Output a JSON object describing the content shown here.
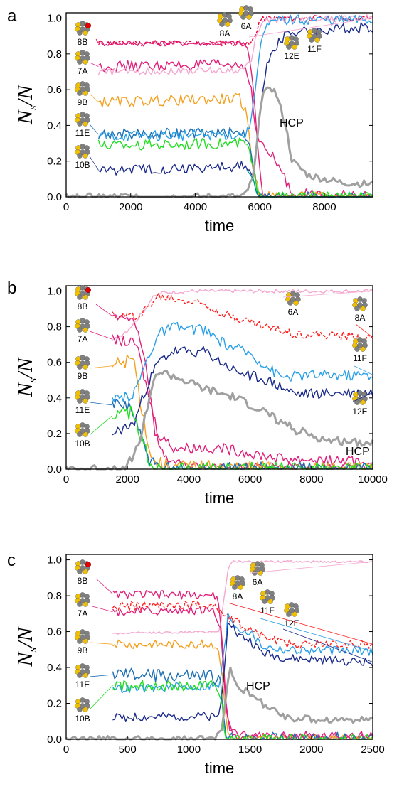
{
  "colors": {
    "8B": "#e8003a",
    "7A": "#e0207a",
    "9B": "#f5a020",
    "11E": "#1c6fb5",
    "10B": "#1a2a8c",
    "8A": "#ff2020",
    "6A": "#f4a8d0",
    "11F": "#2aa0e8",
    "12E": "#1a2a8c",
    "HCP": "#a0a0a0",
    "green": "#20dd20"
  },
  "chart_data": [
    {
      "type": "line",
      "panel": "a",
      "xlabel": "time",
      "ylabel": "N",
      "ylabel_sub": "s",
      "ylabel_tail": "/N",
      "xlim": [
        0,
        9500
      ],
      "ylim": [
        0,
        1.03
      ],
      "xticks": [
        "0",
        "2000",
        "4000",
        "6000",
        "8000"
      ],
      "xtick_values": [
        0,
        2000,
        4000,
        6000,
        8000
      ],
      "yticks": [
        "0.0",
        "0.2",
        "0.4",
        "0.6",
        "0.8",
        "1.0"
      ],
      "ytick_values": [
        0,
        0.2,
        0.4,
        0.6,
        0.8,
        1.0
      ],
      "cluster_labels": [
        "8B",
        "7A",
        "9B",
        "11E",
        "10B",
        "8A",
        "6A",
        "12E",
        "11F"
      ],
      "hcp_label": "HCP",
      "series": [
        {
          "name": "8B",
          "color": "#e8003a",
          "dashed": true,
          "noise": 0.008,
          "x": [
            1000,
            5500,
            5700,
            5850,
            6000,
            6300,
            9500
          ],
          "y": [
            0.86,
            0.86,
            0.85,
            0.9,
            0.99,
            1.0,
            1.0
          ]
        },
        {
          "name": "8B-solid",
          "color": "#e0207a",
          "noise": 0.008,
          "x": [
            1000,
            5500,
            5650,
            5800,
            5950,
            6100,
            9500
          ],
          "y": [
            0.86,
            0.86,
            0.82,
            0.6,
            0.25,
            0.0,
            0.0
          ]
        },
        {
          "name": "7A",
          "color": "#e0207a",
          "noise": 0.015,
          "x": [
            1000,
            5500,
            5700,
            5850,
            6000,
            6500,
            7000,
            9500
          ],
          "y": [
            0.73,
            0.74,
            0.65,
            0.4,
            0.3,
            0.2,
            0.02,
            0.0
          ]
        },
        {
          "name": "6A",
          "color": "#f4a8d0",
          "noise": 0.01,
          "x": [
            1000,
            5500,
            5700,
            5900,
            6100,
            9500
          ],
          "y": [
            0.7,
            0.71,
            0.75,
            0.9,
            0.99,
            1.0
          ]
        },
        {
          "name": "9B",
          "color": "#f5a020",
          "noise": 0.015,
          "x": [
            1000,
            5400,
            5600,
            5800,
            6000,
            9500
          ],
          "y": [
            0.53,
            0.55,
            0.45,
            0.15,
            0.0,
            0.0
          ]
        },
        {
          "name": "11E",
          "color": "#1c6fb5",
          "noise": 0.015,
          "x": [
            1000,
            5500,
            5700,
            5900,
            6000,
            9500
          ],
          "y": [
            0.35,
            0.36,
            0.3,
            0.05,
            0.0,
            0.0
          ]
        },
        {
          "name": "11E-b",
          "color": "#2aa0e8",
          "noise": 0.015,
          "x": [
            1000,
            5600,
            5800,
            6000,
            6200,
            6600,
            9500
          ],
          "y": [
            0.34,
            0.35,
            0.5,
            0.85,
            0.95,
            0.99,
            0.99
          ]
        },
        {
          "name": "green",
          "color": "#20dd20",
          "noise": 0.015,
          "x": [
            1000,
            5600,
            5800,
            5950,
            9500
          ],
          "y": [
            0.29,
            0.3,
            0.15,
            0.0,
            0.0
          ]
        },
        {
          "name": "10B",
          "color": "#1a2a8c",
          "noise": 0.015,
          "x": [
            1000,
            5600,
            5800,
            6000,
            6200,
            6800,
            9500
          ],
          "y": [
            0.15,
            0.17,
            0.1,
            0.45,
            0.75,
            0.92,
            0.95
          ]
        },
        {
          "name": "HCP",
          "color": "#a0a0a0",
          "width": 3,
          "noise": 0.01,
          "x": [
            0,
            5500,
            5800,
            6000,
            6200,
            6500,
            6800,
            7000,
            7500,
            8000,
            8500,
            9500
          ],
          "y": [
            0.0,
            0.0,
            0.1,
            0.5,
            0.64,
            0.58,
            0.4,
            0.2,
            0.12,
            0.1,
            0.08,
            0.07
          ]
        },
        {
          "name": "teal",
          "color": "#009090",
          "noise": 0.0,
          "x": [
            5600,
            5800,
            5900,
            6000,
            9500
          ],
          "y": [
            0.15,
            0.1,
            0.02,
            0.0,
            0.0
          ]
        }
      ]
    },
    {
      "type": "line",
      "panel": "b",
      "xlabel": "time",
      "ylabel": "N",
      "ylabel_sub": "s",
      "ylabel_tail": "/N",
      "xlim": [
        0,
        10000
      ],
      "ylim": [
        0,
        1.03
      ],
      "xticks": [
        "0",
        "2000",
        "4000",
        "6000",
        "8000",
        "10000"
      ],
      "xtick_values": [
        0,
        2000,
        4000,
        6000,
        8000,
        10000
      ],
      "yticks": [
        "0.0",
        "0.2",
        "0.4",
        "0.6",
        "0.8",
        "1.0"
      ],
      "ytick_values": [
        0,
        0.2,
        0.4,
        0.6,
        0.8,
        1.0
      ],
      "cluster_labels": [
        "8B",
        "7A",
        "9B",
        "11E",
        "10B",
        "6A",
        "8A",
        "11F",
        "12E"
      ],
      "hcp_label": "HCP",
      "series": [
        {
          "name": "6A",
          "color": "#f4a8d0",
          "noise": 0.005,
          "x": [
            1500,
            2000,
            2500,
            2800,
            3100,
            4000,
            10000
          ],
          "y": [
            0.72,
            0.78,
            0.88,
            0.96,
            0.99,
            1.0,
            1.0
          ]
        },
        {
          "name": "8A",
          "color": "#ff2020",
          "dashed": true,
          "noise": 0.012,
          "x": [
            1500,
            2300,
            2600,
            3000,
            4500,
            5200,
            6500,
            7500,
            10000
          ],
          "y": [
            0.86,
            0.86,
            0.9,
            0.97,
            0.93,
            0.87,
            0.8,
            0.76,
            0.74
          ]
        },
        {
          "name": "8B",
          "color": "#e0207a",
          "noise": 0.01,
          "x": [
            1500,
            2200,
            2600,
            2900,
            3300,
            4000,
            10000
          ],
          "y": [
            0.86,
            0.85,
            0.6,
            0.2,
            0.05,
            0.02,
            0.01
          ]
        },
        {
          "name": "7A",
          "color": "#e0207a",
          "noise": 0.015,
          "x": [
            1500,
            2300,
            2700,
            3000,
            3500,
            5000,
            7000,
            10000
          ],
          "y": [
            0.73,
            0.7,
            0.4,
            0.2,
            0.12,
            0.12,
            0.06,
            0.04
          ]
        },
        {
          "name": "9B",
          "color": "#f5a020",
          "noise": 0.02,
          "x": [
            1500,
            2200,
            2500,
            2800,
            3200,
            4000,
            10000
          ],
          "y": [
            0.58,
            0.62,
            0.3,
            0.05,
            0.02,
            0.01,
            0.0
          ]
        },
        {
          "name": "11F",
          "color": "#2aa0e8",
          "noise": 0.015,
          "x": [
            1500,
            2200,
            2600,
            3000,
            3500,
            4500,
            5200,
            6000,
            7000,
            8000,
            10000
          ],
          "y": [
            0.38,
            0.42,
            0.6,
            0.76,
            0.8,
            0.78,
            0.7,
            0.65,
            0.52,
            0.53,
            0.53
          ]
        },
        {
          "name": "12E",
          "color": "#1a2a8c",
          "noise": 0.015,
          "x": [
            1500,
            2200,
            2600,
            3000,
            3500,
            4500,
            5500,
            6500,
            7500,
            10000
          ],
          "y": [
            0.2,
            0.25,
            0.45,
            0.6,
            0.66,
            0.66,
            0.55,
            0.5,
            0.42,
            0.43
          ]
        },
        {
          "name": "11E",
          "color": "#1c6fb5",
          "noise": 0.02,
          "x": [
            1500,
            2100,
            2400,
            2700,
            3000,
            10000
          ],
          "y": [
            0.36,
            0.36,
            0.2,
            0.05,
            0.0,
            0.0
          ]
        },
        {
          "name": "10B",
          "color": "#20dd20",
          "noise": 0.02,
          "x": [
            1500,
            2100,
            2400,
            2700,
            2900,
            10000
          ],
          "y": [
            0.3,
            0.32,
            0.2,
            0.05,
            0.0,
            0.0
          ]
        },
        {
          "name": "HCP",
          "color": "#a0a0a0",
          "width": 3,
          "noise": 0.012,
          "x": [
            0,
            1500,
            2000,
            2400,
            2700,
            3000,
            3500,
            4500,
            5500,
            6500,
            7500,
            8500,
            10000
          ],
          "y": [
            0.0,
            0.0,
            0.02,
            0.15,
            0.4,
            0.55,
            0.52,
            0.45,
            0.4,
            0.32,
            0.22,
            0.16,
            0.15
          ]
        }
      ]
    },
    {
      "type": "line",
      "panel": "c",
      "xlabel": "time",
      "ylabel": "N",
      "ylabel_sub": "s",
      "ylabel_tail": "/N",
      "xlim": [
        0,
        2500
      ],
      "ylim": [
        0,
        1.03
      ],
      "xticks": [
        "0",
        "500",
        "1000",
        "1500",
        "2000",
        "2500"
      ],
      "xtick_values": [
        0,
        500,
        1000,
        1500,
        2000,
        2500
      ],
      "yticks": [
        "0.0",
        "0.2",
        "0.4",
        "0.6",
        "0.8",
        "1.0"
      ],
      "ytick_values": [
        0,
        0.2,
        0.4,
        0.6,
        0.8,
        1.0
      ],
      "cluster_labels": [
        "8B",
        "7A",
        "9B",
        "11E",
        "10B",
        "6A",
        "8A",
        "11F",
        "12E"
      ],
      "hcp_label": "HCP",
      "series": [
        {
          "name": "6A",
          "color": "#f4a8d0",
          "noise": 0.003,
          "x": [
            380,
            1250,
            1290,
            1320,
            1350,
            2500
          ],
          "y": [
            0.59,
            0.6,
            0.8,
            0.95,
            0.99,
            0.99
          ]
        },
        {
          "name": "8B",
          "color": "#e0207a",
          "noise": 0.012,
          "x": [
            380,
            1230,
            1270,
            1300,
            1340,
            1400,
            2500
          ],
          "y": [
            0.81,
            0.8,
            0.6,
            0.2,
            0.03,
            0.01,
            0.01
          ]
        },
        {
          "name": "8A",
          "color": "#ff2020",
          "dashed": true,
          "noise": 0.012,
          "x": [
            380,
            1200,
            1280,
            1320,
            1400,
            1600,
            1800,
            2500
          ],
          "y": [
            0.74,
            0.75,
            0.7,
            0.68,
            0.65,
            0.58,
            0.53,
            0.53
          ]
        },
        {
          "name": "7A",
          "color": "#e0207a",
          "noise": 0.012,
          "x": [
            380,
            1200,
            1260,
            1300,
            1340,
            1400,
            2500
          ],
          "y": [
            0.71,
            0.72,
            0.6,
            0.2,
            0.05,
            0.02,
            0.02
          ]
        },
        {
          "name": "9B",
          "color": "#f5a020",
          "noise": 0.012,
          "x": [
            380,
            1220,
            1270,
            1310,
            1350,
            2500
          ],
          "y": [
            0.53,
            0.53,
            0.4,
            0.05,
            0.0,
            0.0
          ]
        },
        {
          "name": "11F",
          "color": "#2aa0e8",
          "noise": 0.012,
          "x": [
            380,
            1250,
            1300,
            1320,
            1400,
            1500,
            1600,
            1800,
            2500
          ],
          "y": [
            0.28,
            0.3,
            0.55,
            0.7,
            0.62,
            0.6,
            0.52,
            0.5,
            0.49
          ]
        },
        {
          "name": "12E",
          "color": "#1a2a8c",
          "noise": 0.012,
          "x": [
            380,
            1250,
            1290,
            1320,
            1400,
            1500,
            1600,
            1800,
            2500
          ],
          "y": [
            0.12,
            0.13,
            0.4,
            0.68,
            0.58,
            0.55,
            0.48,
            0.45,
            0.43
          ]
        },
        {
          "name": "11E",
          "color": "#1c6fb5",
          "noise": 0.02,
          "x": [
            380,
            1200,
            1260,
            1300,
            2500
          ],
          "y": [
            0.36,
            0.35,
            0.3,
            0.0,
            0.0
          ]
        },
        {
          "name": "10B",
          "color": "#20dd20",
          "noise": 0.015,
          "x": [
            380,
            1200,
            1260,
            1300,
            2500
          ],
          "y": [
            0.3,
            0.3,
            0.25,
            0.0,
            0.0
          ]
        },
        {
          "name": "HCP",
          "color": "#a0a0a0",
          "width": 3,
          "noise": 0.01,
          "x": [
            0,
            1200,
            1270,
            1310,
            1340,
            1400,
            1500,
            1600,
            1800,
            2000,
            2500
          ],
          "y": [
            0.0,
            0.0,
            0.05,
            0.3,
            0.4,
            0.3,
            0.25,
            0.2,
            0.12,
            0.11,
            0.11
          ]
        }
      ]
    }
  ]
}
